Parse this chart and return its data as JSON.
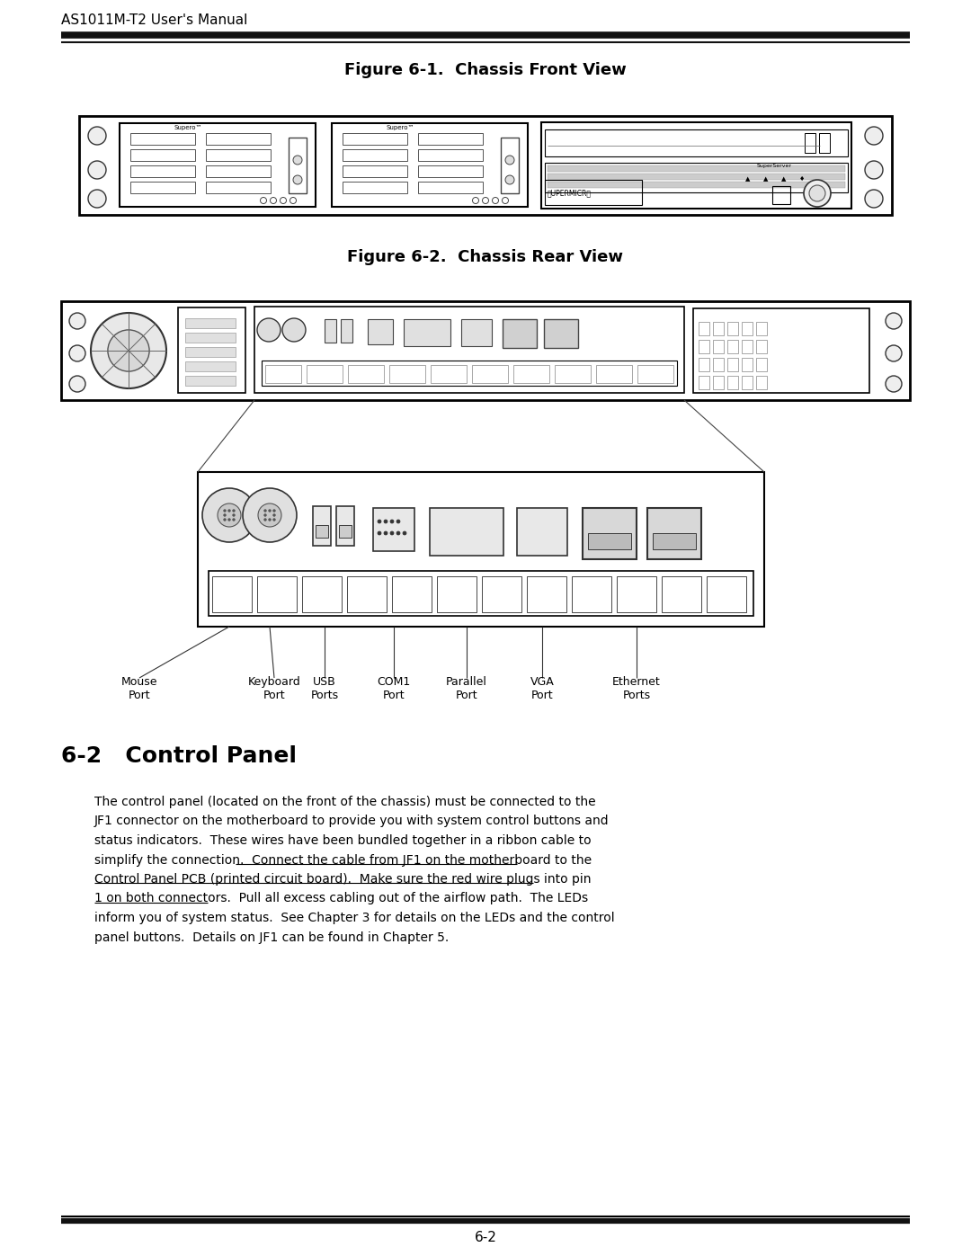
{
  "page_title": "AS1011M-T2 User's Manual",
  "fig1_title": "Figure 6-1.  Chassis Front View",
  "fig2_title": "Figure 6-2.  Chassis Rear View",
  "section_title": "6-2   Control Panel",
  "body_lines": [
    "The control panel (located on the front of the chassis) must be connected to the",
    "JF1 connector on the motherboard to provide you with system control buttons and",
    "status indicators.  These wires have been bundled together in a ribbon cable to",
    "simplify the connection.  Connect the cable from JF1 on the motherboard to the",
    "Control Panel PCB (printed circuit board).  Make sure the red wire plugs into pin",
    "1 on both connectors.  Pull all excess cabling out of the airflow path.  The LEDs",
    "inform you of system status.  See Chapter 3 for details on the LEDs and the control",
    "panel buttons.  Details on JF1 can be found in Chapter 5."
  ],
  "underline_segments": [
    [
      3,
      "simplify the connection.  ",
      "Connect the cable from JF1 on the motherboard to the"
    ],
    [
      4,
      "",
      "Control Panel PCB (printed circuit board).  Make sure the red wire plugs into pin"
    ],
    [
      5,
      "",
      "1 on both connectors."
    ]
  ],
  "footer_text": "6-2",
  "bg_color": "#ffffff",
  "text_color": "#000000"
}
